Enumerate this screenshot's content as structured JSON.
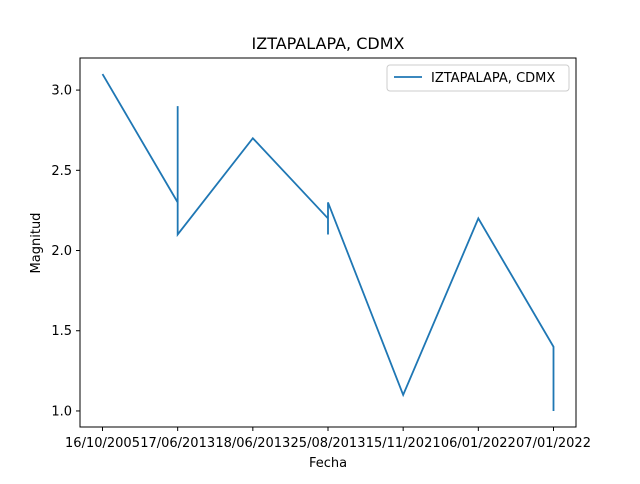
{
  "chart_data": {
    "type": "line",
    "title": "IZTAPALAPA, CDMX",
    "xlabel": "Fecha",
    "ylabel": "Magnitud",
    "categories": [
      "16/10/2005",
      "17/06/2013",
      "18/06/2013",
      "25/08/2013",
      "15/11/2021",
      "06/01/2022",
      "07/01/2022"
    ],
    "ylim": [
      0.9,
      3.2
    ],
    "yticks": [
      "1.0",
      "1.5",
      "2.0",
      "2.5",
      "3.0"
    ],
    "legend_position": "top-right",
    "series": [
      {
        "name": "IZTAPALAPA, CDMX",
        "color": "#1f77b4",
        "points": [
          {
            "x": "16/10/2005",
            "y": 3.1
          },
          {
            "x": "17/06/2013",
            "y": 2.3
          },
          {
            "x": "17/06/2013",
            "y": 2.9
          },
          {
            "x": "17/06/2013",
            "y": 2.1
          },
          {
            "x": "18/06/2013",
            "y": 2.7
          },
          {
            "x": "25/08/2013",
            "y": 2.2
          },
          {
            "x": "25/08/2013",
            "y": 2.1
          },
          {
            "x": "25/08/2013",
            "y": 2.3
          },
          {
            "x": "15/11/2021",
            "y": 1.1
          },
          {
            "x": "06/01/2022",
            "y": 2.2
          },
          {
            "x": "07/01/2022",
            "y": 1.4
          },
          {
            "x": "07/01/2022",
            "y": 1.0
          }
        ]
      }
    ]
  }
}
